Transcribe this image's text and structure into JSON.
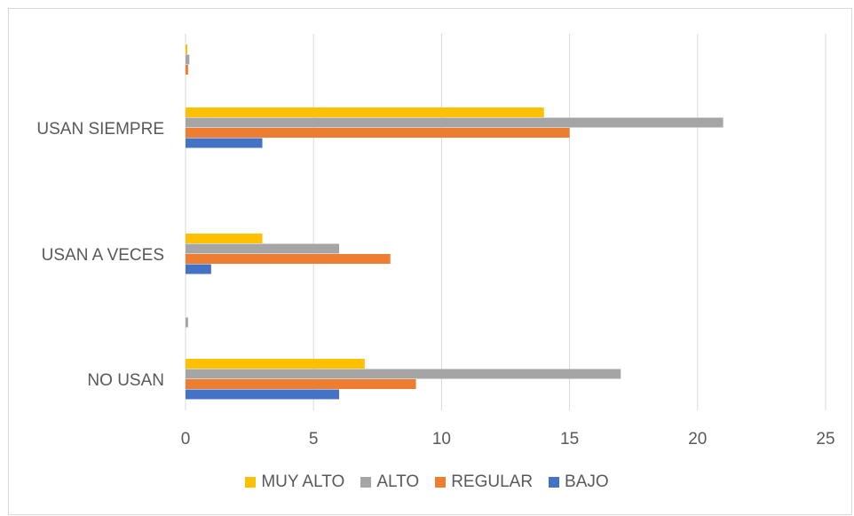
{
  "chart_data": {
    "type": "bar",
    "orientation": "horizontal",
    "categories": [
      "NO USAN",
      "",
      "USAN A VECES",
      "USAN SIEMPRE",
      ""
    ],
    "series": [
      {
        "name": "BAJO",
        "color": "#4472c4",
        "values": [
          6,
          0,
          1,
          3,
          0
        ]
      },
      {
        "name": "REGULAR",
        "color": "#ed7d31",
        "values": [
          9,
          0,
          8,
          15,
          0.1
        ]
      },
      {
        "name": "ALTO",
        "color": "#a5a5a5",
        "values": [
          17,
          0.1,
          6,
          21,
          0.15
        ]
      },
      {
        "name": "MUY ALTO",
        "color": "#ffc000",
        "values": [
          7,
          0,
          3,
          14,
          0.05
        ]
      }
    ],
    "xlim": [
      0,
      25
    ],
    "xticks": [
      "0",
      "5",
      "10",
      "15",
      "20",
      "25"
    ],
    "grid": true,
    "legend_position": "bottom",
    "legend_order": [
      "MUY ALTO",
      "ALTO",
      "REGULAR",
      "BAJO"
    ]
  }
}
